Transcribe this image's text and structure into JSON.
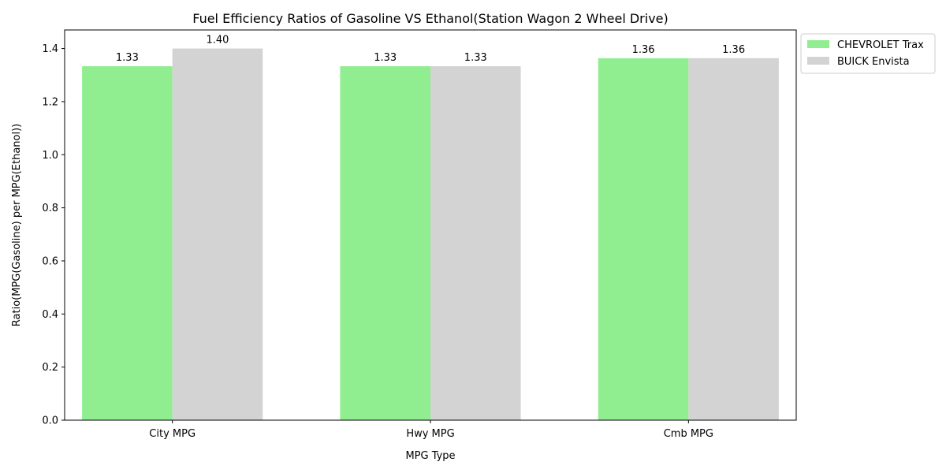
{
  "chart_data": {
    "type": "bar",
    "title": "Fuel Efficiency Ratios of Gasoline VS Ethanol(Station Wagon 2 Wheel Drive)",
    "xlabel": "MPG Type",
    "ylabel": "Ratio(MPG(Gasoline) per MPG(Ethanol))",
    "categories": [
      "City MPG",
      "Hwy MPG",
      "Cmb MPG"
    ],
    "series": [
      {
        "name": "CHEVROLET Trax",
        "values": [
          1.3333,
          1.3333,
          1.3636
        ],
        "labels": [
          "1.33",
          "1.33",
          "1.36"
        ],
        "color": "#90ee90"
      },
      {
        "name": "BUICK Envista",
        "values": [
          1.4,
          1.3333,
          1.3636
        ],
        "labels": [
          "1.40",
          "1.33",
          "1.36"
        ],
        "color": "#d3d3d3"
      }
    ],
    "ylim": [
      0,
      1.47
    ],
    "yticks": [
      0.0,
      0.2,
      0.4,
      0.6,
      0.8,
      1.0,
      1.2,
      1.4
    ],
    "ytick_labels": [
      "0.0",
      "0.2",
      "0.4",
      "0.6",
      "0.8",
      "1.0",
      "1.2",
      "1.4"
    ],
    "grid": false,
    "legend_position": "outside-top-right"
  }
}
